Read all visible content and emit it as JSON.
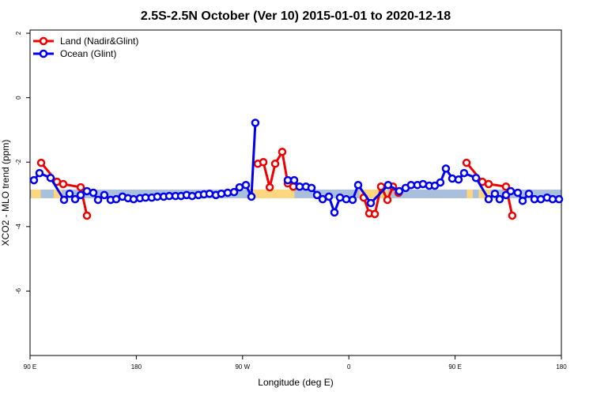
{
  "chart_data": {
    "type": "line",
    "title": "2.5S-2.5N October (Ver 10)   2015-01-01 to 2020-12-18",
    "xlabel": "Longitude (deg E)",
    "ylabel": "XCO2 - MLO trend (ppm)",
    "xlim": [
      90,
      540
    ],
    "ylim": [
      -8,
      2.1
    ],
    "xticks": [
      {
        "value": 90,
        "label": "90 E"
      },
      180,
      {
        "value": 270,
        "label": "90 W"
      },
      {
        "value": 360,
        "label": "0"
      },
      {
        "value": 450,
        "label": "90 E"
      },
      {
        "value": 540,
        "label": "180"
      }
    ],
    "yticks": [
      -6,
      -4,
      -2,
      0,
      2
    ],
    "legend": "top-left",
    "band": {
      "ylim": [
        -3.12,
        -2.85
      ],
      "color": "#a9bfdc",
      "highlight_color": "#fcd77f",
      "highlight_ranges": [
        [
          91,
          99
        ],
        [
          110,
          117
        ],
        [
          279,
          314
        ],
        [
          369,
          393
        ],
        [
          460,
          465
        ],
        [
          470,
          480
        ]
      ]
    },
    "series": [
      {
        "name": "Land (Nadir&Glint)",
        "color": "#ee0000",
        "x": [
          99.4,
          112.8,
          118.1,
          132.9,
          138.2,
          null,
          282.9,
          287.6,
          293.0,
          297.6,
          303.6,
          308.3,
          313.0,
          null,
          372.6,
          377.3,
          382.0,
          387.3,
          392.7,
          397.4,
          402.1,
          null,
          459.7,
          473.1,
          478.4,
          493.1,
          498.4
        ],
        "values": [
          -2.02,
          -2.61,
          -2.68,
          -2.78,
          -3.66,
          null,
          -2.05,
          -2.0,
          -2.78,
          -2.05,
          -1.68,
          -2.66,
          -2.76,
          null,
          -3.1,
          -3.59,
          -3.61,
          -2.76,
          -3.17,
          -2.76,
          -2.95,
          null,
          -2.02,
          -2.61,
          -2.68,
          -2.76,
          -3.66
        ]
      },
      {
        "name": "Ocean (Glint)",
        "color": "#0000ee",
        "x": [
          93.3,
          98.0,
          107.4,
          118.8,
          123.5,
          128.2,
          132.9,
          138.2,
          143.6,
          147.6,
          152.9,
          158.3,
          163.0,
          168.3,
          173.0,
          177.7,
          183.1,
          187.8,
          193.1,
          197.8,
          203.2,
          207.9,
          213.2,
          217.9,
          222.6,
          227.3,
          232.6,
          237.3,
          242.0,
          247.4,
          252.0,
          257.4,
          262.8,
          267.4,
          272.8,
          277.5,
          280.8,
          null,
          308.3,
          313.7,
          318.3,
          323.7,
          328.4,
          333.1,
          337.8,
          343.1,
          347.8,
          352.5,
          357.8,
          363.2,
          367.9,
          378.6,
          393.3,
          402.7,
          408.1,
          412.7,
          418.1,
          422.8,
          428.1,
          432.8,
          437.5,
          442.2,
          447.6,
          452.9,
          457.6,
          467.7,
          478.4,
          483.7,
          487.7,
          493.1,
          497.1,
          503.1,
          507.2,
          512.5,
          517.2,
          522.6,
          527.9,
          532.6,
          538.0
        ],
        "values": [
          -2.56,
          -2.34,
          -2.49,
          -3.17,
          -2.98,
          -3.15,
          -3.02,
          -2.9,
          -2.95,
          -3.17,
          -3.02,
          -3.17,
          -3.15,
          -3.07,
          -3.12,
          -3.15,
          -3.12,
          -3.1,
          -3.1,
          -3.07,
          -3.07,
          -3.05,
          -3.05,
          -3.05,
          -3.02,
          -3.05,
          -3.02,
          -3.0,
          -2.98,
          -3.02,
          -2.98,
          -2.95,
          -2.93,
          -2.78,
          -2.71,
          -3.07,
          -0.78,
          null,
          -2.56,
          -2.56,
          -2.76,
          -2.76,
          -2.8,
          -3.02,
          -3.15,
          -3.07,
          -3.56,
          -3.1,
          -3.15,
          -3.17,
          -2.71,
          -3.27,
          -2.71,
          -2.9,
          -2.8,
          -2.71,
          -2.71,
          -2.68,
          -2.73,
          -2.73,
          -2.63,
          -2.2,
          -2.51,
          -2.54,
          -2.34,
          -2.49,
          -3.15,
          -2.98,
          -3.15,
          -3.02,
          -2.9,
          -2.95,
          -3.2,
          -2.98,
          -3.15,
          -3.15,
          -3.1,
          -3.15,
          -3.15
        ]
      }
    ]
  }
}
